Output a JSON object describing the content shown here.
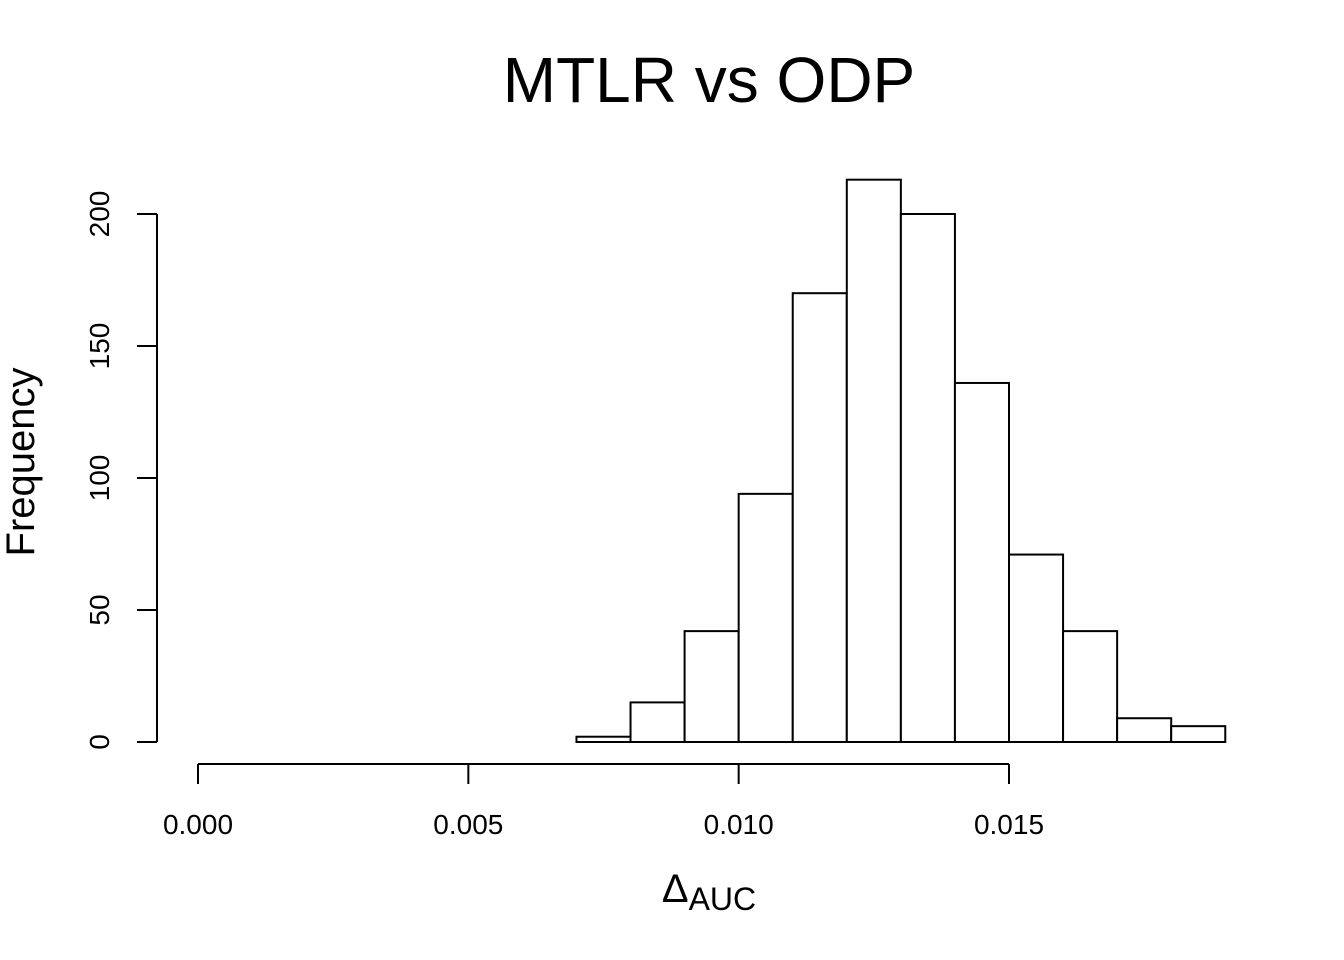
{
  "chart_data": {
    "type": "bar",
    "title": "MTLR vs ODP",
    "xlabel": "Δ",
    "xlabel_subscript": "AUC",
    "ylabel": "Frequency",
    "bin_edges": [
      0.007,
      0.008,
      0.009,
      0.01,
      0.011,
      0.012,
      0.013,
      0.014,
      0.015,
      0.016,
      0.017,
      0.018,
      0.019
    ],
    "values": [
      2,
      15,
      42,
      94,
      170,
      213,
      200,
      136,
      71,
      42,
      9,
      6
    ],
    "xlim": [
      0.0,
      0.019
    ],
    "ylim": [
      0,
      213
    ],
    "x_ticks": [
      0.0,
      0.005,
      0.01,
      0.015
    ],
    "x_tick_labels": [
      "0.000",
      "0.005",
      "0.010",
      "0.015"
    ],
    "y_ticks": [
      0,
      50,
      100,
      150,
      200
    ],
    "y_tick_labels": [
      "0",
      "50",
      "100",
      "150",
      "200"
    ],
    "grid": false,
    "legend": "none"
  }
}
